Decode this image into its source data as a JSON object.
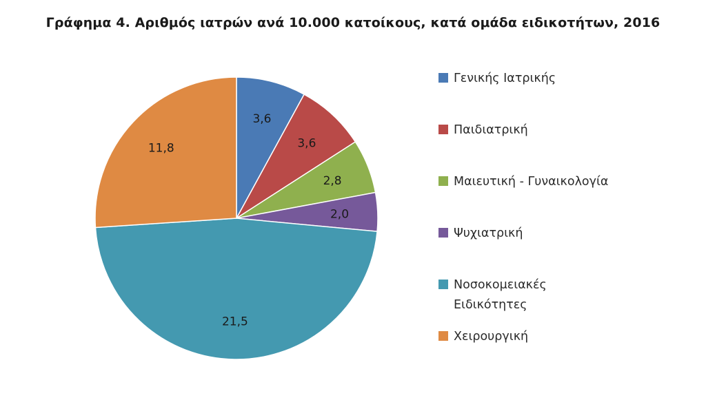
{
  "title": "Γράφημα 4. Αριθμός ιατρών ανά 10.000 κατοίκους, κατά ομάδα ειδικοτήτων, 2016",
  "chart_data": {
    "type": "pie",
    "title": "Γράφημα 4. Αριθμός ιατρών ανά 10.000 κατοίκους, κατά ομάδα ειδικοτήτων, 2016",
    "legend_position": "right",
    "slices": [
      {
        "name": "Γενικής Ιατρικής",
        "value": 3.6,
        "label": "3,6",
        "color": "#4a7ab5"
      },
      {
        "name": "Παιδιατρική",
        "value": 3.6,
        "label": "3,6",
        "color": "#b94a48"
      },
      {
        "name": "Μαιευτική - Γυναικολογία",
        "value": 2.8,
        "label": "2,8",
        "color": "#8fb04e"
      },
      {
        "name": "Ψυχιατρική",
        "value": 2.0,
        "label": "2,0",
        "color": "#76599a"
      },
      {
        "name": "Νοσοκομειακές Ειδικότητες",
        "value": 21.5,
        "label": "21,5",
        "color": "#4499b0"
      },
      {
        "name": "Χειρουργική",
        "value": 11.8,
        "label": "11,8",
        "color": "#df8a43"
      }
    ]
  }
}
